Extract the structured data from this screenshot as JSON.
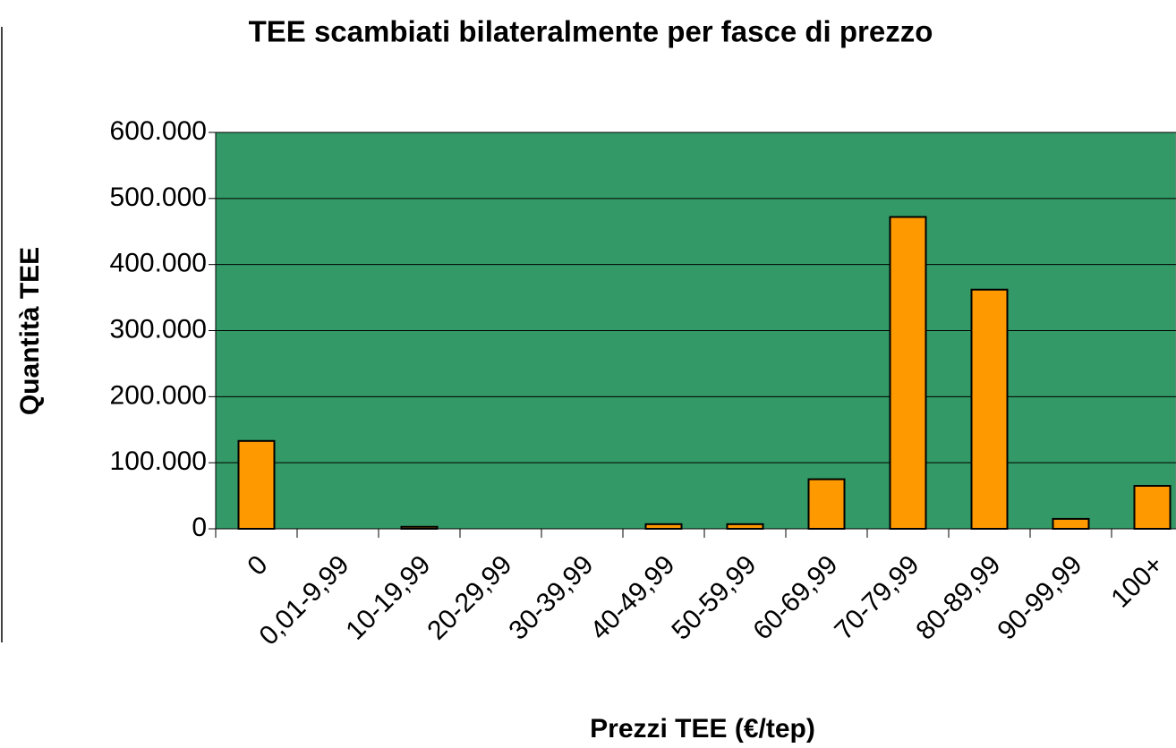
{
  "chart_data": {
    "type": "bar",
    "title": "TEE scambiati bilateralmente per fasce di prezzo",
    "x_label": "Prezzi TEE (€/tep)",
    "y_label": "Quantità TEE",
    "categories": [
      "0",
      "0,01-9,99",
      "10-19,99",
      "20-29,99",
      "30-39,99",
      "40-49,99",
      "50-59,99",
      "60-69,99",
      "70-79,99",
      "80-89,99",
      "90-99,99",
      "100+"
    ],
    "values": [
      133000,
      0,
      3000,
      0,
      0,
      7000,
      7000,
      75000,
      472000,
      362000,
      15000,
      65000
    ],
    "color": "#ff9900",
    "plot_background": "#339966",
    "ylim": [
      0,
      600000
    ],
    "yticks": [
      0,
      {
        "value": 100000,
        "label": "100.000"
      },
      {
        "value": 200000,
        "label": "200.000"
      },
      {
        "value": 300000,
        "label": "300.000"
      },
      {
        "value": 400000,
        "label": "400.000"
      },
      {
        "value": 500000,
        "label": "500.000"
      },
      {
        "value": 600000,
        "label": "600.000"
      }
    ],
    "grid": true
  }
}
